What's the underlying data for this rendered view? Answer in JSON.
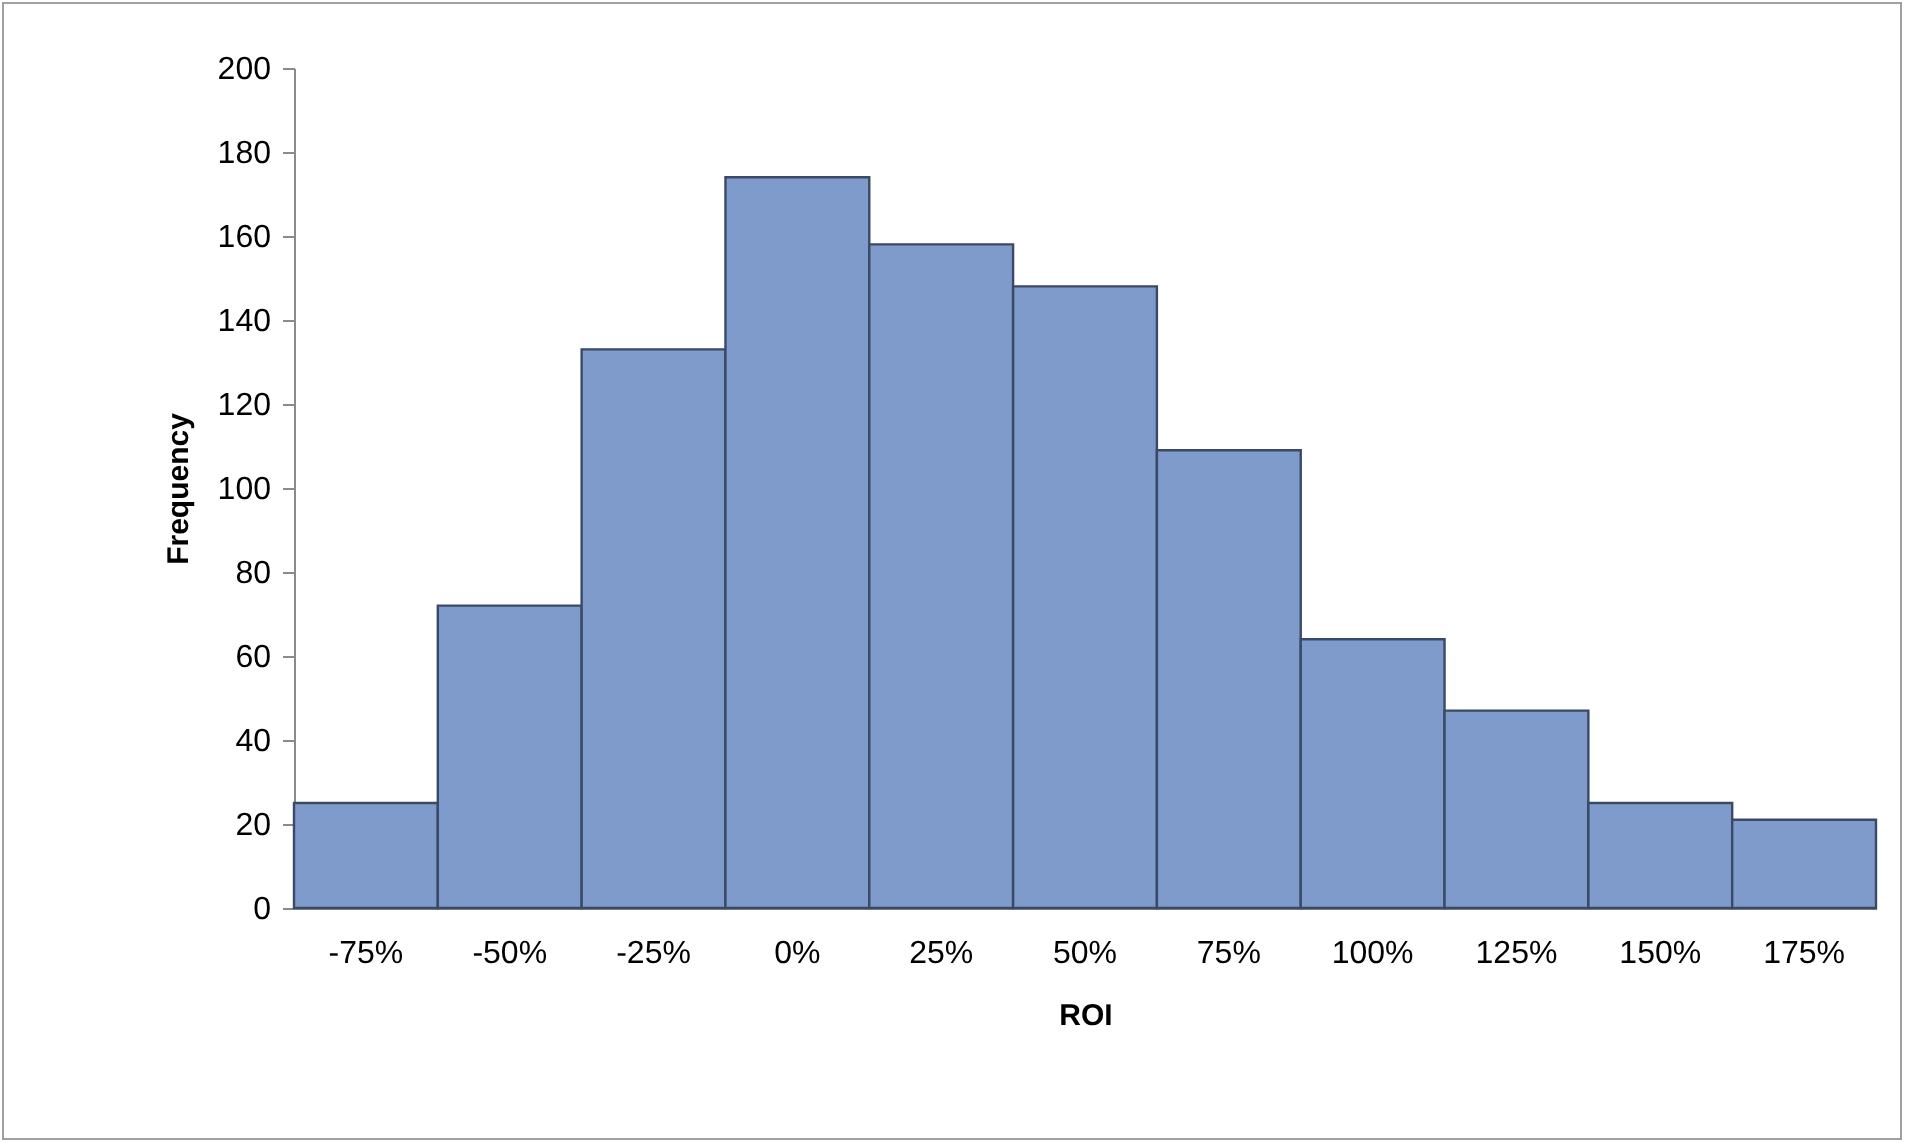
{
  "chart_data": {
    "type": "bar",
    "xlabel": "ROI",
    "ylabel": "Frequency",
    "categories": [
      "-75%",
      "-50%",
      "-25%",
      "0%",
      "25%",
      "50%",
      "75%",
      "100%",
      "125%",
      "150%",
      "175%"
    ],
    "values": [
      25,
      72,
      133,
      174,
      158,
      148,
      109,
      64,
      47,
      25,
      21
    ],
    "color": "#7f9bcc",
    "ylim": [
      0,
      200
    ],
    "yticks": [
      0,
      20,
      40,
      60,
      80,
      100,
      120,
      140,
      160,
      180,
      200
    ],
    "grid": false
  }
}
